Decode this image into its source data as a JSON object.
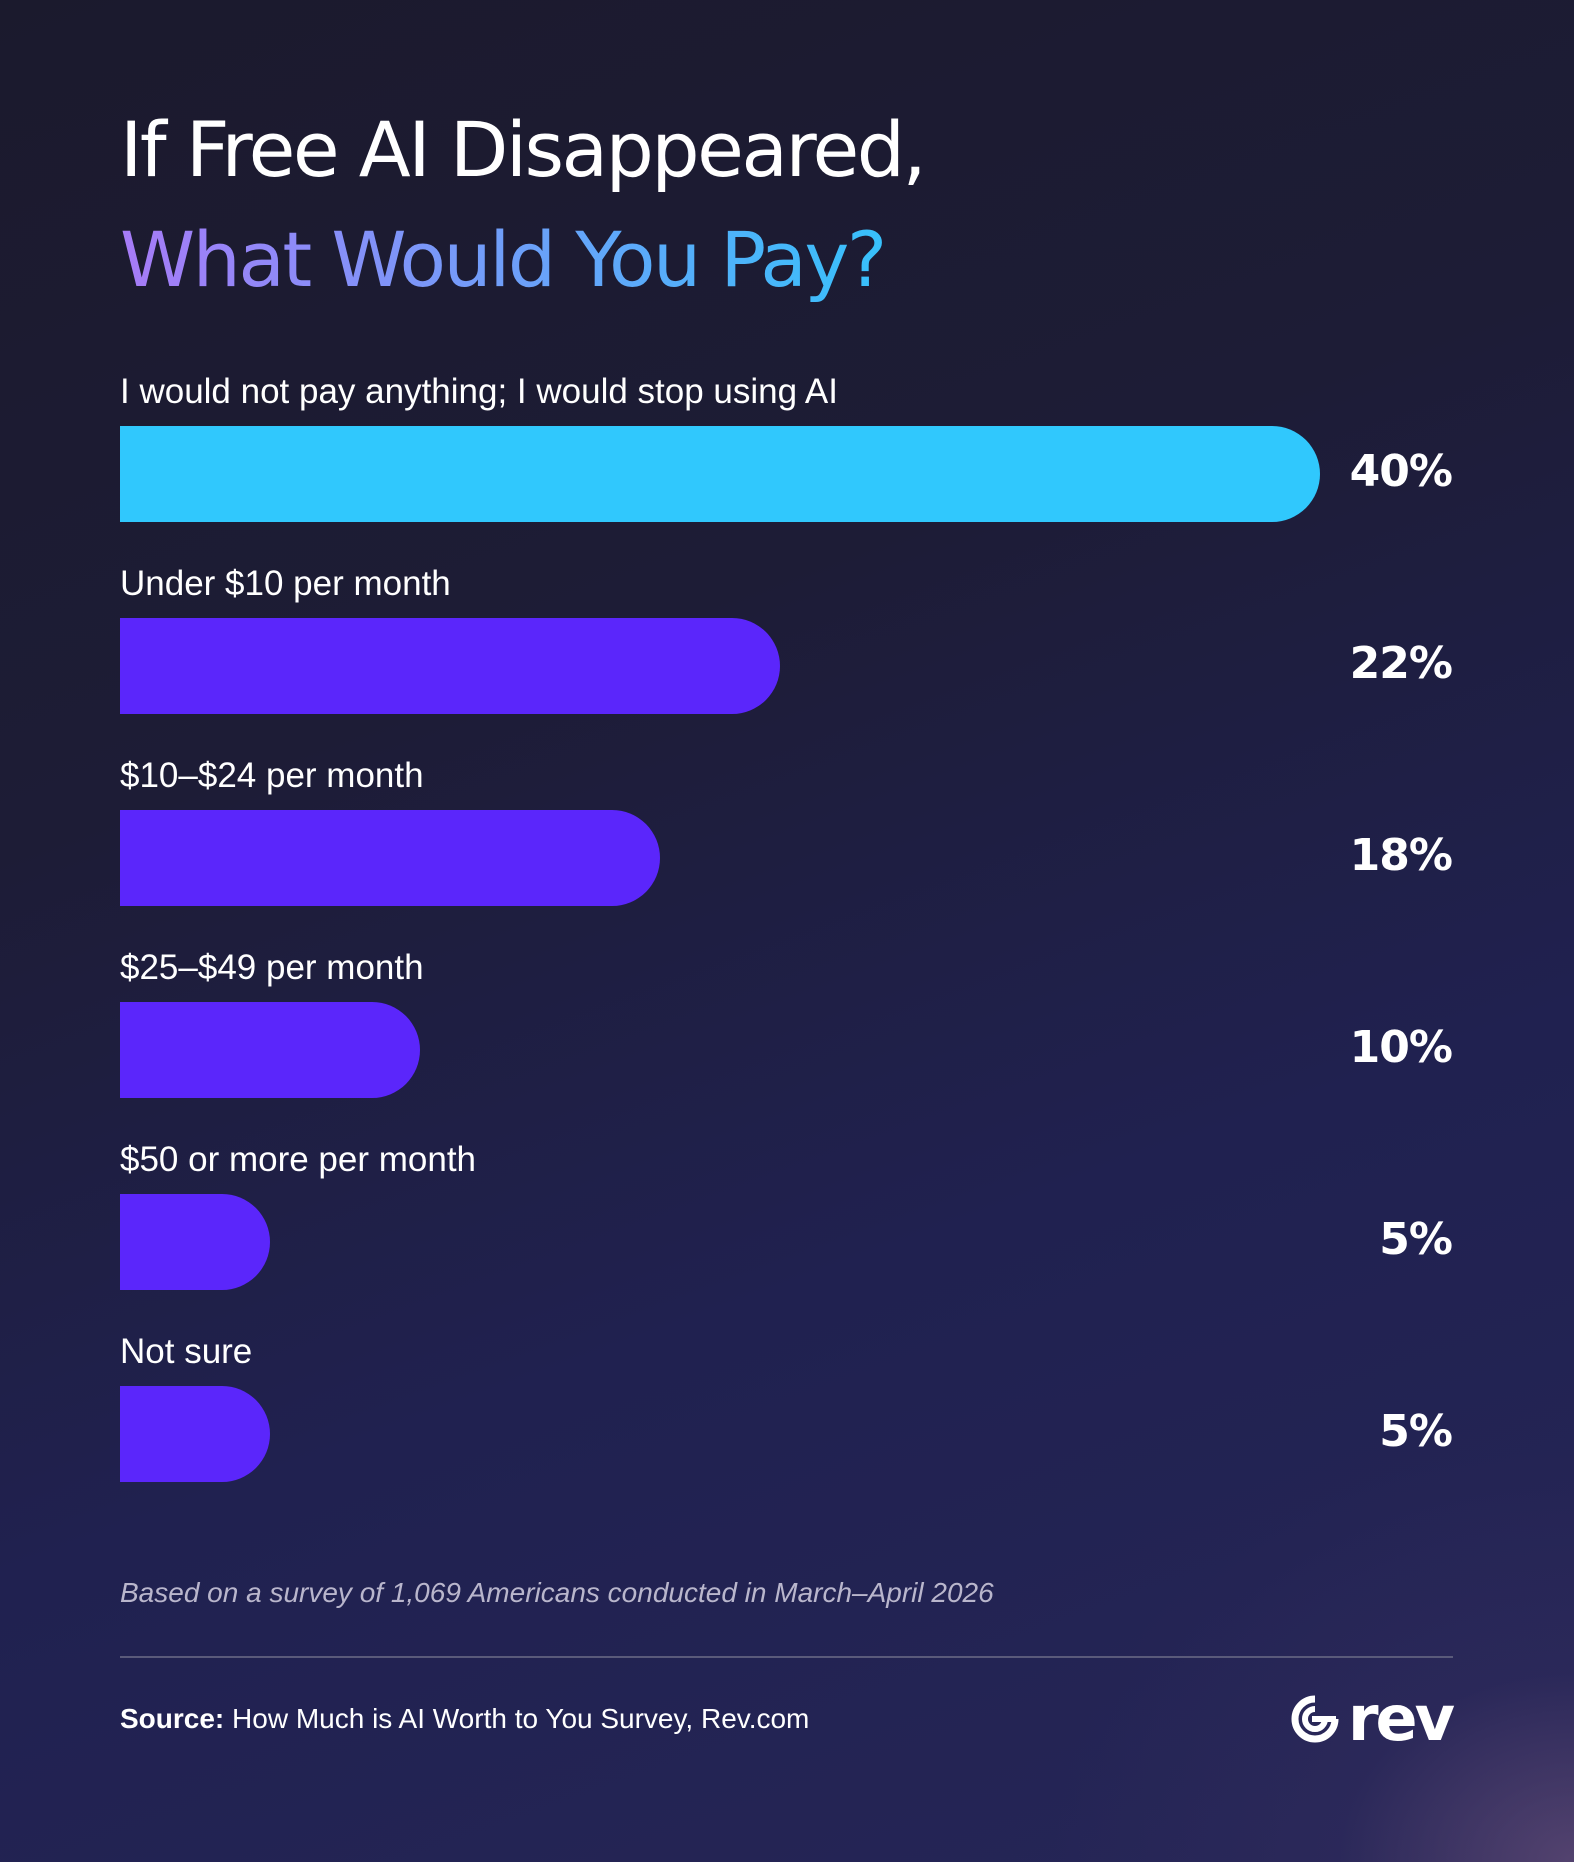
{
  "title": {
    "line1": "If Free AI Disappeared,",
    "line2": "What Would You Pay?"
  },
  "colors": {
    "background": "#1d1c36",
    "highlight_bar": "#30c8fd",
    "bar": "#5b26fb",
    "title_gradient_start": "#a77bf7",
    "title_gradient_end": "#37c1fb",
    "text": "#ffffff",
    "footnote_text": "#b9b6cc"
  },
  "chart_data": {
    "type": "bar",
    "orientation": "horizontal",
    "title": "If Free AI Disappeared, What Would You Pay?",
    "categories": [
      "I would not pay anything; I would stop using AI",
      "Under $10 per month",
      "$10–$24 per month",
      "$25–$49 per month",
      "$50 or more per month",
      "Not sure"
    ],
    "values": [
      40,
      22,
      18,
      10,
      5,
      5
    ],
    "value_labels": [
      "40%",
      "22%",
      "18%",
      "10%",
      "5%",
      "5%"
    ],
    "unit": "%",
    "xlim": [
      0,
      40
    ],
    "highlighted_index": 0,
    "grid": false,
    "legend": "none"
  },
  "footnote": "Based on a survey of 1,069 Americans conducted in March–April 2026",
  "source": {
    "prefix": "Source:",
    "text": " How Much is AI Worth to You Survey, Rev.com"
  },
  "logo": {
    "wordmark": "rev",
    "icon": "rev-logo-icon"
  }
}
